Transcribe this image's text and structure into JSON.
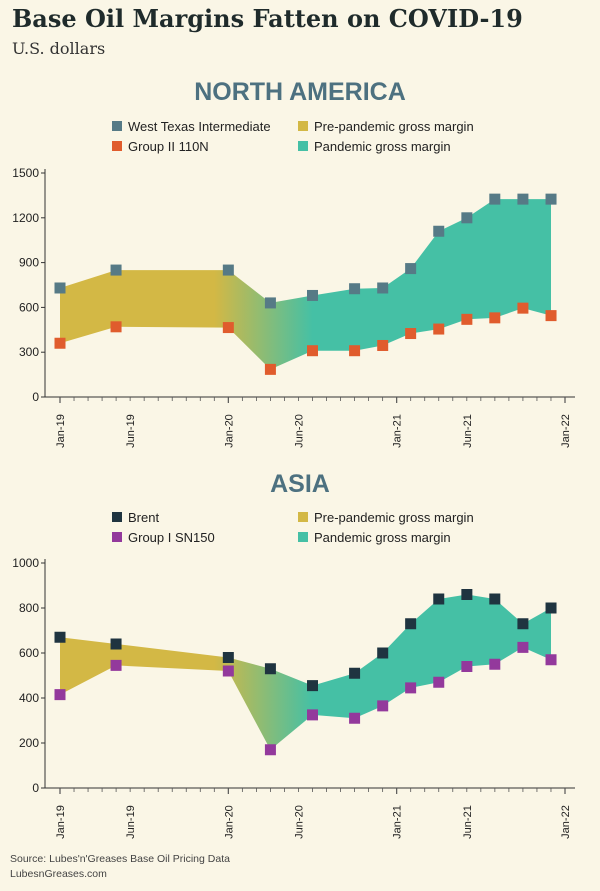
{
  "title": "Base Oil Margins Fatten on COVID-19",
  "subtitle": "U.S. dollars",
  "source": "Source: Lubes'n'Greases Base Oil Pricing Data",
  "site": "LubesnGreases.com",
  "colors": {
    "pre_pandemic": "#d3b845",
    "pandemic": "#45c0a5",
    "wti": "#567a86",
    "group2": "#e05c2d",
    "brent": "#1f3440",
    "group1": "#93399c",
    "region_title": "#4d7180",
    "background": "#faf6e6"
  },
  "chart_data": [
    {
      "type": "area",
      "title": "NORTH AMERICA",
      "ylim": [
        0,
        1500
      ],
      "yticks": [
        0,
        300,
        600,
        900,
        1200,
        1500
      ],
      "xlim": [
        2019.0,
        2022.0
      ],
      "x_tick_labels": [
        {
          "label": "Jan-19",
          "x": 2019.0
        },
        {
          "label": "Jun-19",
          "x": 2019.4167
        },
        {
          "label": "Jan-20",
          "x": 2020.0
        },
        {
          "label": "Jun-20",
          "x": 2020.4167
        },
        {
          "label": "Jan-21",
          "x": 2021.0
        },
        {
          "label": "Jun-21",
          "x": 2021.4167
        },
        {
          "label": "Jan-22",
          "x": 2022.0
        }
      ],
      "x": [
        "Jan-19",
        "May-19",
        "Jan-20",
        "Apr-20",
        "Jul-20",
        "Oct-20",
        "Dec-20",
        "Feb-21",
        "Apr-21",
        "Jun-21",
        "Aug-21",
        "Oct-21",
        "Dec-21"
      ],
      "x_num": [
        2019.0,
        2019.333,
        2020.0,
        2020.25,
        2020.5,
        2020.75,
        2020.917,
        2021.083,
        2021.25,
        2021.417,
        2021.583,
        2021.75,
        2021.917
      ],
      "pandemic_start_index": 3,
      "series": [
        {
          "name": "West Texas Intermediate",
          "color_key": "wti",
          "values": [
            730,
            850,
            850,
            630,
            680,
            725,
            730,
            860,
            1110,
            1200,
            1325,
            1325,
            1325
          ]
        },
        {
          "name": "Group II 110N",
          "color_key": "group2",
          "values": [
            360,
            470,
            465,
            185,
            310,
            310,
            345,
            425,
            455,
            520,
            530,
            595,
            545
          ]
        }
      ],
      "legend": [
        {
          "label": "West Texas Intermediate",
          "color_key": "wti"
        },
        {
          "label": "Group II 110N",
          "color_key": "group2"
        },
        {
          "label": "Pre-pandemic gross margin",
          "color_key": "pre_pandemic"
        },
        {
          "label": "Pandemic gross margin",
          "color_key": "pandemic"
        }
      ]
    },
    {
      "type": "area",
      "title": "ASIA",
      "ylim": [
        0,
        1000
      ],
      "yticks": [
        0,
        200,
        400,
        600,
        800,
        1000
      ],
      "xlim": [
        2019.0,
        2022.0
      ],
      "x_tick_labels": [
        {
          "label": "Jan-19",
          "x": 2019.0
        },
        {
          "label": "Jun-19",
          "x": 2019.4167
        },
        {
          "label": "Jan-20",
          "x": 2020.0
        },
        {
          "label": "Jun-20",
          "x": 2020.4167
        },
        {
          "label": "Jan-21",
          "x": 2021.0
        },
        {
          "label": "Jun-21",
          "x": 2021.4167
        },
        {
          "label": "Jan-22",
          "x": 2022.0
        }
      ],
      "x": [
        "Jan-19",
        "May-19",
        "Jan-20",
        "Apr-20",
        "Jul-20",
        "Oct-20",
        "Dec-20",
        "Feb-21",
        "Apr-21",
        "Jun-21",
        "Aug-21",
        "Oct-21",
        "Dec-21"
      ],
      "x_num": [
        2019.0,
        2019.333,
        2020.0,
        2020.25,
        2020.5,
        2020.75,
        2020.917,
        2021.083,
        2021.25,
        2021.417,
        2021.583,
        2021.75,
        2021.917
      ],
      "pandemic_start_index": 3,
      "series": [
        {
          "name": "Brent",
          "color_key": "brent",
          "values": [
            670,
            640,
            580,
            530,
            455,
            510,
            600,
            730,
            840,
            860,
            840,
            730,
            800
          ]
        },
        {
          "name": "Group I SN150",
          "color_key": "group1",
          "values": [
            415,
            545,
            520,
            170,
            325,
            310,
            365,
            445,
            470,
            540,
            550,
            625,
            570
          ]
        }
      ],
      "legend": [
        {
          "label": "Brent",
          "color_key": "brent"
        },
        {
          "label": "Group I SN150",
          "color_key": "group1"
        },
        {
          "label": "Pre-pandemic gross margin",
          "color_key": "pre_pandemic"
        },
        {
          "label": "Pandemic gross margin",
          "color_key": "pandemic"
        }
      ]
    }
  ]
}
